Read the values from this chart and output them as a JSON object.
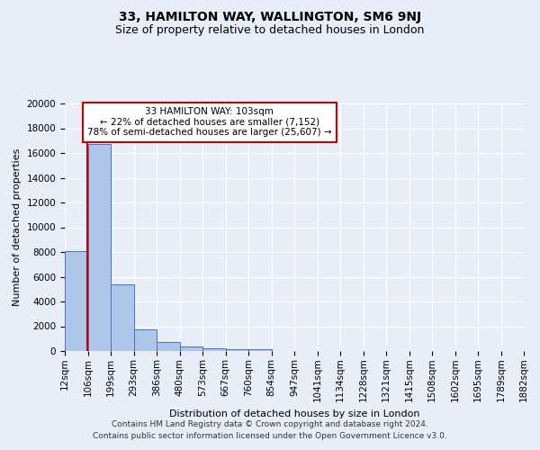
{
  "title1": "33, HAMILTON WAY, WALLINGTON, SM6 9NJ",
  "title2": "Size of property relative to detached houses in London",
  "xlabel": "Distribution of detached houses by size in London",
  "ylabel": "Number of detached properties",
  "bin_labels": [
    "12sqm",
    "106sqm",
    "199sqm",
    "293sqm",
    "386sqm",
    "480sqm",
    "573sqm",
    "667sqm",
    "760sqm",
    "854sqm",
    "947sqm",
    "1041sqm",
    "1134sqm",
    "1228sqm",
    "1321sqm",
    "1415sqm",
    "1508sqm",
    "1602sqm",
    "1695sqm",
    "1789sqm",
    "1882sqm"
  ],
  "bar_heights": [
    8050,
    16700,
    5350,
    1750,
    700,
    380,
    230,
    170,
    130,
    0,
    0,
    0,
    0,
    0,
    0,
    0,
    0,
    0,
    0,
    0
  ],
  "bar_color": "#aec6e8",
  "bar_edge_color": "#4472c4",
  "bg_color": "#e8eef8",
  "grid_color": "#ffffff",
  "property_line_bin_index": 0.97,
  "annotation_text": "33 HAMILTON WAY: 103sqm\n← 22% of detached houses are smaller (7,152)\n78% of semi-detached houses are larger (25,607) →",
  "annotation_box_color": "#ffffff",
  "annotation_box_edge_color": "#cc0000",
  "vline_color": "#cc0000",
  "ylim": [
    0,
    20000
  ],
  "yticks": [
    0,
    2000,
    4000,
    6000,
    8000,
    10000,
    12000,
    14000,
    16000,
    18000,
    20000
  ],
  "footnote1": "Contains HM Land Registry data © Crown copyright and database right 2024.",
  "footnote2": "Contains public sector information licensed under the Open Government Licence v3.0.",
  "title1_fontsize": 10,
  "title2_fontsize": 9,
  "axis_label_fontsize": 8,
  "tick_fontsize": 7.5,
  "annotation_fontsize": 7.5,
  "footnote_fontsize": 6.5
}
